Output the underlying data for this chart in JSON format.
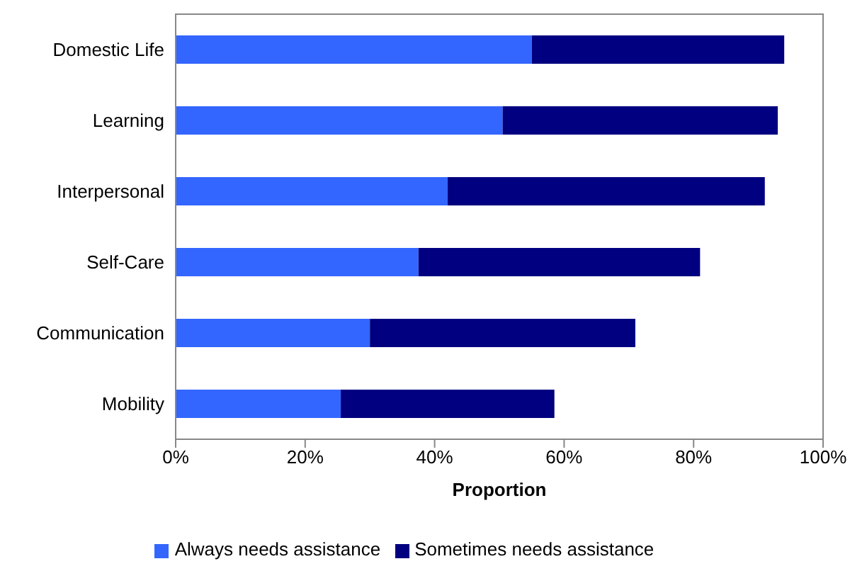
{
  "chart_data": {
    "type": "bar",
    "orientation": "horizontal",
    "stacked": true,
    "xlabel": "Proportion",
    "categories": [
      "Domestic Life",
      "Learning",
      "Interpersonal",
      "Self-Care",
      "Communication",
      "Mobility"
    ],
    "series": [
      {
        "name": "Always needs assistance",
        "color": "#3366ff",
        "values": [
          55,
          50.5,
          42,
          37.5,
          30,
          25.5
        ]
      },
      {
        "name": "Sometimes needs assistance",
        "color": "#000080",
        "values": [
          39,
          42.5,
          49,
          43.5,
          41,
          33
        ]
      }
    ],
    "xlim": [
      0,
      100
    ],
    "xticks": [
      {
        "value": 0,
        "label": "0%"
      },
      {
        "value": 20,
        "label": "20%"
      },
      {
        "value": 40,
        "label": "40%"
      },
      {
        "value": 60,
        "label": "60%"
      },
      {
        "value": 80,
        "label": "80%"
      },
      {
        "value": 100,
        "label": "100%"
      }
    ],
    "grid": false,
    "legend": "bottom"
  }
}
